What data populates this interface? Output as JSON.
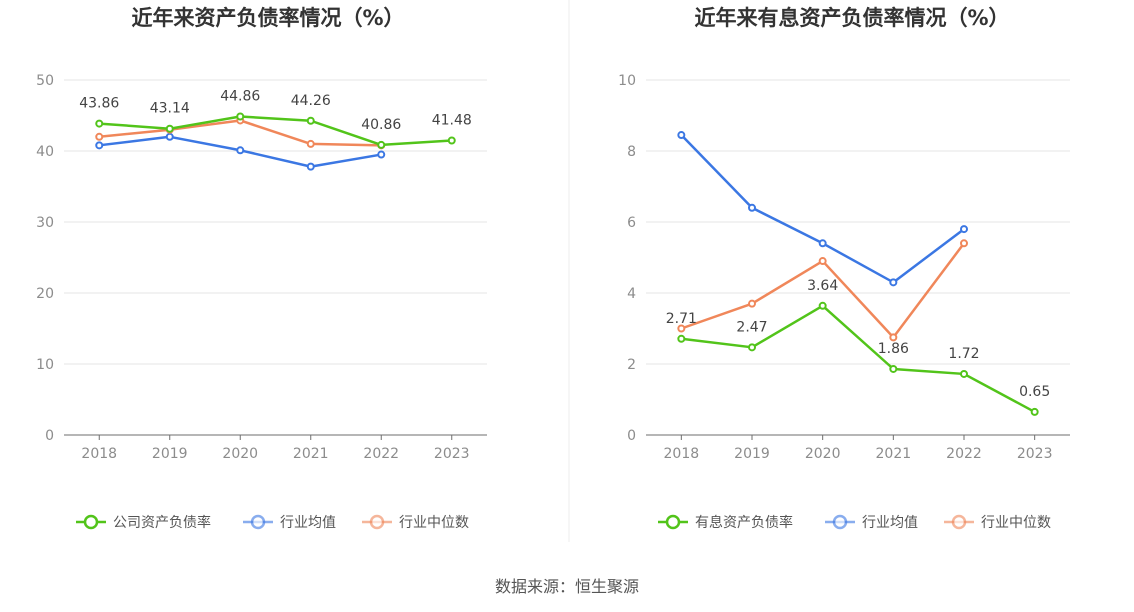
{
  "source_text": "数据来源：恒生聚源",
  "chart_data": [
    {
      "type": "line",
      "title": "近年来资产负债率情况（%）",
      "x": [
        "2018",
        "2019",
        "2020",
        "2021",
        "2022",
        "2023"
      ],
      "ylim": [
        0,
        50
      ],
      "yticks": [
        "0",
        "10",
        "20",
        "30",
        "40",
        "50"
      ],
      "grid": true,
      "legend_position": "bottom",
      "series": [
        {
          "name": "公司资产负债率",
          "color": "#52c41a",
          "values": [
            43.86,
            43.14,
            44.86,
            44.26,
            40.86,
            41.48
          ],
          "labels": [
            "43.86",
            "43.14",
            "44.86",
            "44.26",
            "40.86",
            "41.48"
          ]
        },
        {
          "name": "行业均值",
          "color": "#3b77e3",
          "values": [
            40.8,
            42.0,
            40.1,
            37.8,
            39.5,
            null
          ]
        },
        {
          "name": "行业中位数",
          "color": "#f0875a",
          "values": [
            42.0,
            43.0,
            44.3,
            41.0,
            40.8,
            null
          ]
        }
      ]
    },
    {
      "type": "line",
      "title": "近年来有息资产负债率情况（%）",
      "x": [
        "2018",
        "2019",
        "2020",
        "2021",
        "2022",
        "2023"
      ],
      "ylim": [
        0,
        10
      ],
      "yticks": [
        "0",
        "2",
        "4",
        "6",
        "8",
        "10"
      ],
      "grid": true,
      "legend_position": "bottom",
      "series": [
        {
          "name": "有息资产负债率",
          "color": "#52c41a",
          "values": [
            2.71,
            2.47,
            3.64,
            1.86,
            1.72,
            0.65
          ],
          "labels": [
            "2.71",
            "2.47",
            "3.64",
            "1.86",
            "1.72",
            "0.65"
          ]
        },
        {
          "name": "行业均值",
          "color": "#3b77e3",
          "values": [
            8.45,
            6.4,
            5.4,
            4.3,
            5.8,
            null
          ]
        },
        {
          "name": "行业中位数",
          "color": "#f0875a",
          "values": [
            3.0,
            3.7,
            4.9,
            2.75,
            5.4,
            null
          ]
        }
      ]
    }
  ]
}
